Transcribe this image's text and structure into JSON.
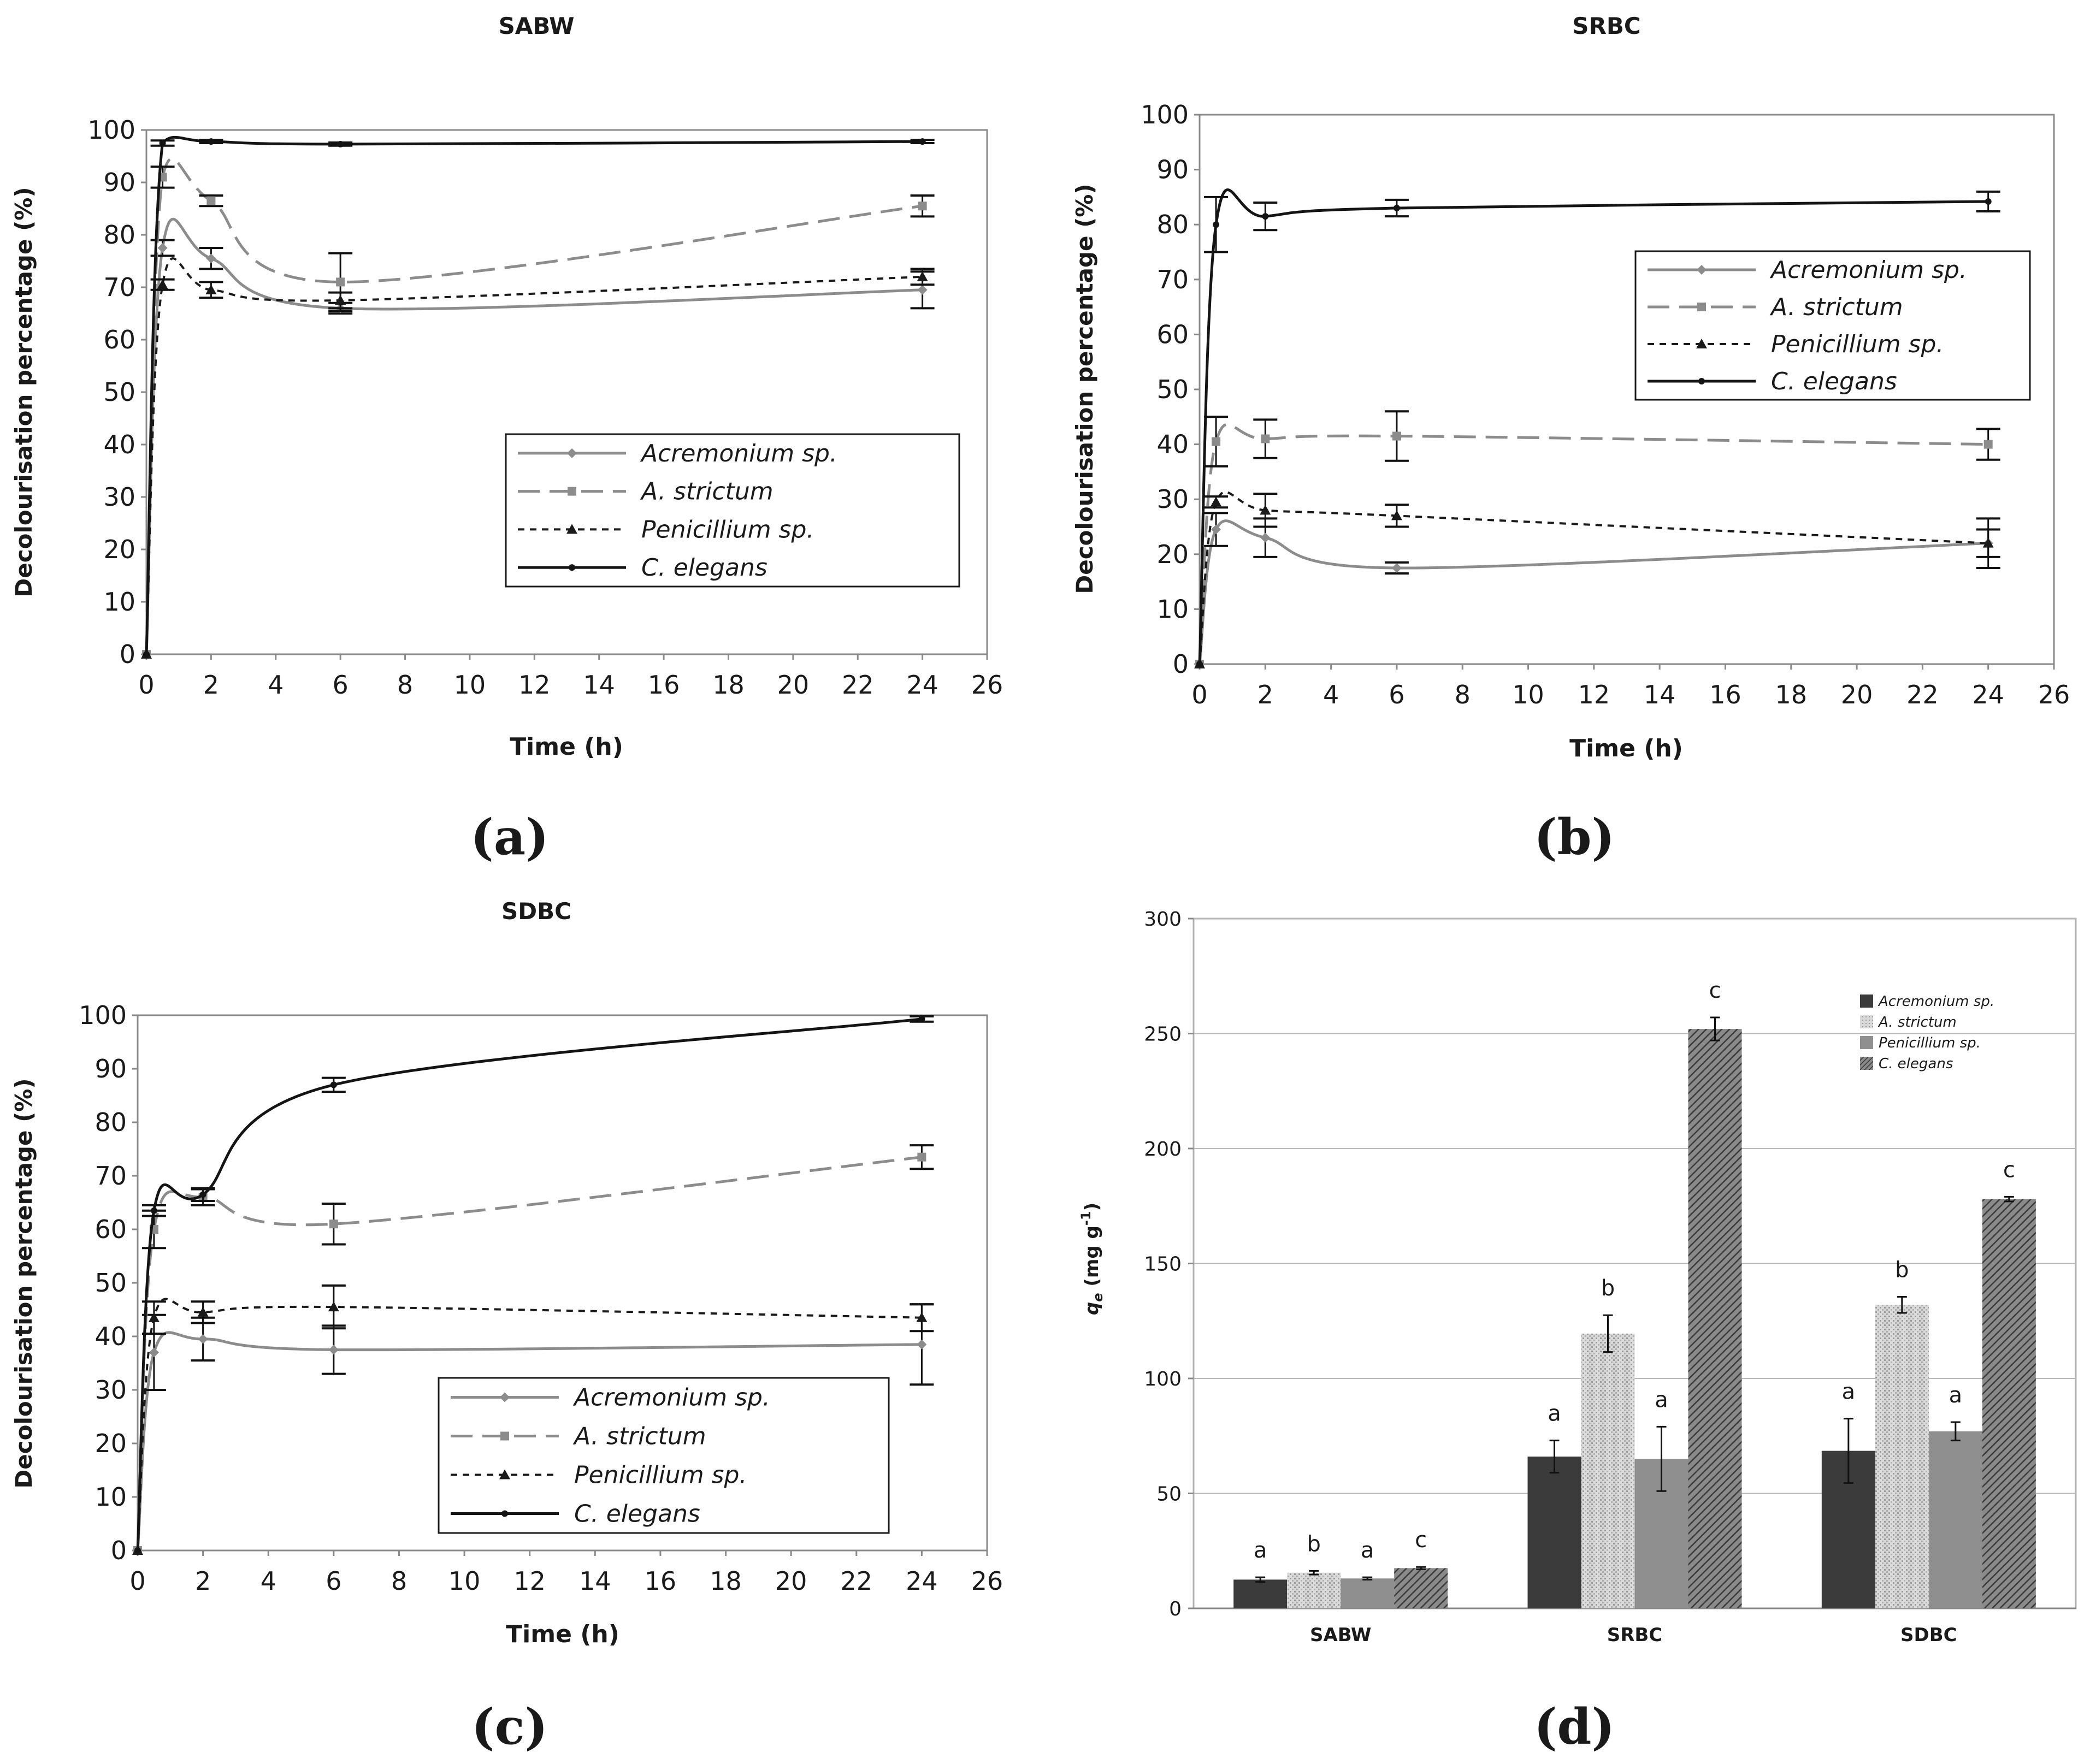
{
  "figure": {
    "panel_labels": [
      "(a)",
      "(b)",
      "(c)",
      "(d)"
    ]
  },
  "colors": {
    "acremonium": "#8c8c8c",
    "a_strictum": "#8c8c8c",
    "penicillium": "#1a1a1a",
    "c_elegans": "#141414",
    "bar_acremonium": "#3b3b3b",
    "bar_a_strictum": "#cfcfcf",
    "bar_penicillium": "#8f8f8f",
    "bar_c_elegans": "#5e5e5e"
  },
  "chart_data": [
    {
      "type": "line",
      "title": "SABW",
      "xlabel": "Time (h)",
      "ylabel": "Decolourisation percentage (%)",
      "xlim": [
        0,
        26
      ],
      "ylim": [
        0,
        100
      ],
      "xticks": [
        "0",
        "2",
        "4",
        "6",
        "8",
        "10",
        "12",
        "14",
        "16",
        "18",
        "20",
        "22",
        "24",
        "26"
      ],
      "yticks": [
        "0",
        "10",
        "20",
        "30",
        "40",
        "50",
        "60",
        "70",
        "80",
        "90",
        "100"
      ],
      "legend_position": "center-right",
      "x": [
        0,
        0.5,
        2,
        6,
        24
      ],
      "series": [
        {
          "name": "Acremonium sp.",
          "values": [
            0,
            77.5,
            75.5,
            66,
            69.5
          ],
          "err": [
            0,
            1.5,
            2,
            1,
            3.5
          ],
          "style": "solid-gray",
          "marker": "diamond"
        },
        {
          "name": "A. strictum",
          "values": [
            0,
            91,
            86.5,
            71,
            85.5
          ],
          "err": [
            0,
            2,
            1,
            5.5,
            2
          ],
          "style": "dash-gray",
          "marker": "square"
        },
        {
          "name": "Penicillium sp.",
          "values": [
            0,
            70.5,
            69.5,
            67.5,
            72
          ],
          "err": [
            0,
            1,
            1.5,
            1.5,
            1.5
          ],
          "style": "dot-black",
          "marker": "triangle"
        },
        {
          "name": "C. elegans",
          "values": [
            0,
            97.5,
            97.8,
            97.3,
            97.8
          ],
          "err": [
            0,
            0.5,
            0.3,
            0.3,
            0.3
          ],
          "style": "solid-black",
          "marker": "dot"
        }
      ]
    },
    {
      "type": "line",
      "title": "SRBC",
      "xlabel": "Time (h)",
      "ylabel": "Decolourisation percentage (%)",
      "xlim": [
        0,
        26
      ],
      "ylim": [
        0,
        100
      ],
      "xticks": [
        "0",
        "2",
        "4",
        "6",
        "8",
        "10",
        "12",
        "14",
        "16",
        "18",
        "20",
        "22",
        "24",
        "26"
      ],
      "yticks": [
        "0",
        "10",
        "20",
        "30",
        "40",
        "50",
        "60",
        "70",
        "80",
        "90",
        "100"
      ],
      "legend_position": "top-right",
      "x": [
        0,
        0.5,
        2,
        6,
        24
      ],
      "series": [
        {
          "name": "Acremonium sp.",
          "values": [
            0,
            24.5,
            23,
            17.5,
            22
          ],
          "err": [
            0,
            3,
            3.5,
            1,
            4.5
          ],
          "style": "solid-gray",
          "marker": "diamond"
        },
        {
          "name": "A. strictum",
          "values": [
            0,
            40.5,
            41,
            41.5,
            40
          ],
          "err": [
            0,
            4.5,
            3.5,
            4.5,
            2.8
          ],
          "style": "dash-gray",
          "marker": "square"
        },
        {
          "name": "Penicillium sp.",
          "values": [
            0,
            29.5,
            28,
            27,
            22
          ],
          "err": [
            0,
            1,
            3,
            2,
            2.5
          ],
          "style": "dot-black",
          "marker": "triangle"
        },
        {
          "name": "C. elegans",
          "values": [
            0,
            80,
            81.5,
            83,
            84.2
          ],
          "err": [
            0,
            5,
            2.5,
            1.5,
            1.8
          ],
          "style": "solid-black",
          "marker": "dot"
        }
      ]
    },
    {
      "type": "line",
      "title": "SDBC",
      "xlabel": "Time (h)",
      "ylabel": "Decolourisation percentage (%)",
      "xlim": [
        0,
        26
      ],
      "ylim": [
        0,
        100
      ],
      "xticks": [
        "0",
        "2",
        "4",
        "6",
        "8",
        "10",
        "12",
        "14",
        "16",
        "18",
        "20",
        "22",
        "24",
        "26"
      ],
      "yticks": [
        "0",
        "10",
        "20",
        "30",
        "40",
        "50",
        "60",
        "70",
        "80",
        "90",
        "100"
      ],
      "legend_position": "bottom-right",
      "x": [
        0,
        0.5,
        2,
        6,
        24
      ],
      "series": [
        {
          "name": "Acremonium sp.",
          "values": [
            0,
            37,
            39.5,
            37.5,
            38.5
          ],
          "err": [
            0,
            7,
            4,
            4.5,
            7.5
          ],
          "style": "solid-gray",
          "marker": "diamond"
        },
        {
          "name": "A. strictum",
          "values": [
            0,
            60,
            66,
            61,
            73.5
          ],
          "err": [
            0,
            3.5,
            1.5,
            3.8,
            2.2
          ],
          "style": "dash-gray",
          "marker": "square"
        },
        {
          "name": "Penicillium sp.",
          "values": [
            0,
            43.5,
            44.5,
            45.5,
            43.5
          ],
          "err": [
            0,
            3,
            2,
            4,
            2.5
          ],
          "style": "dot-black",
          "marker": "triangle"
        },
        {
          "name": "C. elegans",
          "values": [
            0,
            63.5,
            66.5,
            87,
            99.3
          ],
          "err": [
            0,
            1,
            1.2,
            1.3,
            0.5
          ],
          "style": "solid-black",
          "marker": "dot"
        }
      ]
    },
    {
      "type": "bar",
      "title": "",
      "xlabel": "",
      "ylabel": "qe (mg g-1)",
      "ylabel_parts": {
        "q": "q",
        "sub": "e",
        "units_open": " (mg g",
        "sup": "-1",
        "units_close": ")"
      },
      "ylim": [
        0,
        300
      ],
      "yticks": [
        "0",
        "50",
        "100",
        "150",
        "200",
        "250",
        "300"
      ],
      "legend_position": "top-right",
      "categories": [
        "SABW",
        "SRBC",
        "SDBC"
      ],
      "series": [
        {
          "name": "Acremonium sp.",
          "values": [
            12.5,
            66,
            68.5
          ],
          "err": [
            1,
            7,
            14
          ],
          "letters": [
            "a",
            "a",
            "a"
          ],
          "pattern": "solid-dark"
        },
        {
          "name": "A. strictum",
          "values": [
            15.5,
            119.5,
            132
          ],
          "err": [
            0.8,
            8,
            3.5
          ],
          "letters": [
            "b",
            "b",
            "b"
          ],
          "pattern": "dotted-light"
        },
        {
          "name": "Penicillium sp.",
          "values": [
            13,
            65,
            77
          ],
          "err": [
            0.5,
            14,
            4
          ],
          "letters": [
            "a",
            "a",
            "a"
          ],
          "pattern": "solid-mid"
        },
        {
          "name": "C. elegans",
          "values": [
            17.5,
            252,
            178
          ],
          "err": [
            0.5,
            5,
            1
          ],
          "letters": [
            "c",
            "c",
            "c"
          ],
          "pattern": "hatched"
        }
      ]
    }
  ]
}
